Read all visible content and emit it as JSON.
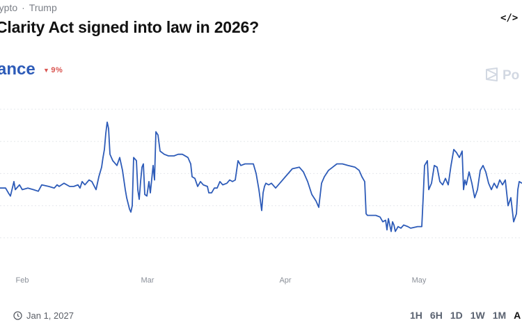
{
  "breadcrumb": {
    "first": "rypto",
    "separator": "·",
    "second": "Trump"
  },
  "title": "Clarity Act signed into law in 2026?",
  "embed_icon": "code-embed-icon",
  "chance": {
    "label": "ance",
    "change": "9%",
    "direction": "down",
    "color": "#2d5bb8",
    "change_color": "#d9534f"
  },
  "brand": {
    "text": "Po",
    "icon": "polymarket-logo-icon"
  },
  "footer": {
    "left_mark": "l",
    "end_date": "Jan 1, 2027",
    "date_icon": "clock-icon"
  },
  "time_ranges": [
    "1H",
    "6H",
    "1D",
    "1W",
    "1M",
    "A"
  ],
  "chart_data": {
    "type": "line",
    "series": [
      {
        "color": "#2d5bb8",
        "points": [
          [
            0,
            31
          ],
          [
            8,
            31
          ],
          [
            12,
            28
          ],
          [
            15,
            26
          ],
          [
            20,
            35
          ],
          [
            22,
            30
          ],
          [
            28,
            33
          ],
          [
            32,
            30
          ],
          [
            40,
            31
          ],
          [
            48,
            30
          ],
          [
            55,
            29
          ],
          [
            60,
            33
          ],
          [
            70,
            32
          ],
          [
            78,
            31
          ],
          [
            82,
            33
          ],
          [
            85,
            32
          ],
          [
            92,
            34
          ],
          [
            100,
            32
          ],
          [
            106,
            32
          ],
          [
            112,
            33
          ],
          [
            115,
            31
          ],
          [
            118,
            35
          ],
          [
            122,
            33
          ],
          [
            128,
            36
          ],
          [
            132,
            35
          ],
          [
            138,
            30
          ],
          [
            142,
            38
          ],
          [
            146,
            44
          ],
          [
            148,
            50
          ],
          [
            150,
            55
          ],
          [
            152,
            65
          ],
          [
            154,
            72
          ],
          [
            156,
            68
          ],
          [
            158,
            52
          ],
          [
            162,
            48
          ],
          [
            168,
            45
          ],
          [
            172,
            50
          ],
          [
            176,
            42
          ],
          [
            180,
            30
          ],
          [
            182,
            25
          ],
          [
            186,
            18
          ],
          [
            188,
            16
          ],
          [
            190,
            20
          ],
          [
            192,
            50
          ],
          [
            196,
            48
          ],
          [
            198,
            30
          ],
          [
            200,
            24
          ],
          [
            202,
            35
          ],
          [
            204,
            44
          ],
          [
            206,
            46
          ],
          [
            208,
            27
          ],
          [
            211,
            26
          ],
          [
            214,
            35
          ],
          [
            216,
            28
          ],
          [
            220,
            45
          ],
          [
            222,
            36
          ],
          [
            224,
            66
          ],
          [
            227,
            64
          ],
          [
            230,
            54
          ],
          [
            236,
            52
          ],
          [
            242,
            51
          ],
          [
            250,
            51
          ],
          [
            256,
            52
          ],
          [
            262,
            52
          ],
          [
            270,
            50
          ],
          [
            274,
            46
          ],
          [
            276,
            38
          ],
          [
            280,
            37
          ],
          [
            284,
            32
          ],
          [
            288,
            35
          ],
          [
            292,
            33
          ],
          [
            298,
            32
          ],
          [
            300,
            28
          ],
          [
            304,
            28
          ],
          [
            308,
            31
          ],
          [
            312,
            31
          ],
          [
            316,
            35
          ],
          [
            320,
            33
          ],
          [
            326,
            34
          ],
          [
            330,
            36
          ],
          [
            334,
            35
          ],
          [
            338,
            36
          ],
          [
            340,
            42
          ],
          [
            342,
            48
          ],
          [
            346,
            45
          ],
          [
            352,
            46
          ],
          [
            360,
            46
          ],
          [
            364,
            46
          ],
          [
            368,
            40
          ],
          [
            372,
            30
          ],
          [
            376,
            17
          ],
          [
            378,
            28
          ],
          [
            380,
            32
          ],
          [
            382,
            34
          ],
          [
            386,
            33
          ],
          [
            390,
            34
          ],
          [
            396,
            31
          ],
          [
            402,
            34
          ],
          [
            410,
            38
          ],
          [
            420,
            43
          ],
          [
            430,
            44
          ],
          [
            436,
            41
          ],
          [
            442,
            35
          ],
          [
            448,
            27
          ],
          [
            454,
            23
          ],
          [
            458,
            19
          ],
          [
            462,
            34
          ],
          [
            466,
            38
          ],
          [
            472,
            42
          ],
          [
            478,
            44
          ],
          [
            484,
            46
          ],
          [
            492,
            46
          ],
          [
            500,
            45
          ],
          [
            510,
            44
          ],
          [
            516,
            42
          ],
          [
            520,
            38
          ],
          [
            524,
            35
          ],
          [
            526,
            15
          ],
          [
            528,
            14
          ],
          [
            534,
            14
          ],
          [
            540,
            14
          ],
          [
            546,
            13
          ],
          [
            550,
            10
          ],
          [
            554,
            11
          ],
          [
            556,
            5
          ],
          [
            558,
            12
          ],
          [
            562,
            4
          ],
          [
            564,
            10
          ],
          [
            566,
            8
          ],
          [
            568,
            4
          ],
          [
            572,
            7
          ],
          [
            576,
            6
          ],
          [
            580,
            8
          ],
          [
            586,
            7
          ],
          [
            590,
            6
          ],
          [
            600,
            7
          ],
          [
            606,
            7
          ],
          [
            608,
            25
          ],
          [
            610,
            45
          ],
          [
            614,
            48
          ],
          [
            616,
            30
          ],
          [
            620,
            34
          ],
          [
            624,
            45
          ],
          [
            628,
            44
          ],
          [
            632,
            35
          ],
          [
            636,
            33
          ],
          [
            640,
            37
          ],
          [
            644,
            33
          ],
          [
            648,
            45
          ],
          [
            652,
            55
          ],
          [
            656,
            53
          ],
          [
            660,
            50
          ],
          [
            664,
            54
          ],
          [
            666,
            30
          ],
          [
            668,
            36
          ],
          [
            670,
            33
          ],
          [
            674,
            41
          ],
          [
            678,
            34
          ],
          [
            682,
            25
          ],
          [
            686,
            30
          ],
          [
            690,
            42
          ],
          [
            694,
            45
          ],
          [
            698,
            41
          ],
          [
            702,
            34
          ],
          [
            706,
            30
          ],
          [
            710,
            34
          ],
          [
            714,
            31
          ],
          [
            718,
            36
          ],
          [
            722,
            33
          ],
          [
            726,
            36
          ],
          [
            728,
            28
          ],
          [
            730,
            20
          ],
          [
            734,
            25
          ],
          [
            738,
            10
          ],
          [
            742,
            15
          ],
          [
            744,
            30
          ],
          [
            746,
            35
          ],
          [
            750,
            34
          ]
        ]
      }
    ],
    "y_gridlines": [
      0,
      20,
      40,
      60,
      80
    ],
    "ylim": [
      -20,
      80
    ],
    "xlim": [
      0,
      750
    ],
    "x_ticks": [
      {
        "label": "Feb",
        "x": 32
      },
      {
        "label": "Mar",
        "x": 212
      },
      {
        "label": "Apr",
        "x": 410
      },
      {
        "label": "May",
        "x": 602
      }
    ]
  }
}
